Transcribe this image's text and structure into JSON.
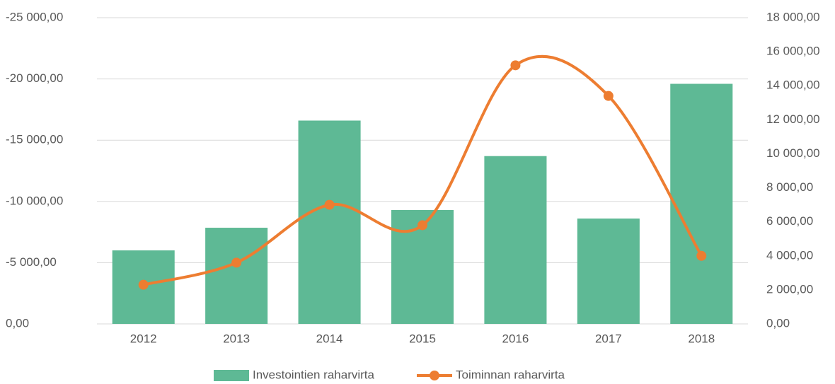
{
  "chart_data": {
    "type": "bar_line",
    "categories": [
      "2012",
      "2013",
      "2014",
      "2015",
      "2016",
      "2017",
      "2018"
    ],
    "series": [
      {
        "name": "Investointien raharvirta",
        "type": "bar",
        "color": "#5eb995",
        "axis": "y",
        "values": [
          -6000,
          -7850,
          -16600,
          -9300,
          -13700,
          -8600,
          -19600
        ]
      },
      {
        "name": "Toiminnan raharvirta",
        "type": "line",
        "color": "#ed7d31",
        "axis": "y2",
        "smooth": true,
        "values": [
          2300,
          3600,
          7000,
          5800,
          15200,
          13400,
          4000
        ]
      }
    ],
    "ylim": [
      0,
      -25000
    ],
    "yticks": [
      {
        "value": 0,
        "label": "0,00"
      },
      {
        "value": -5000,
        "label": "-5 000,00"
      },
      {
        "value": -10000,
        "label": "-10 000,00"
      },
      {
        "value": -15000,
        "label": "-15 000,00"
      },
      {
        "value": -20000,
        "label": "-20 000,00"
      },
      {
        "value": -25000,
        "label": "-25 000,00"
      }
    ],
    "y2lim": [
      0,
      18000
    ],
    "y2ticks": [
      {
        "value": 0,
        "label": "0,00"
      },
      {
        "value": 2000,
        "label": "2 000,00"
      },
      {
        "value": 4000,
        "label": "4 000,00"
      },
      {
        "value": 6000,
        "label": "6 000,00"
      },
      {
        "value": 8000,
        "label": "8 000,00"
      },
      {
        "value": 10000,
        "label": "10 000,00"
      },
      {
        "value": 12000,
        "label": "12 000,00"
      },
      {
        "value": 14000,
        "label": "14 000,00"
      },
      {
        "value": 16000,
        "label": "16 000,00"
      },
      {
        "value": 18000,
        "label": "18 000,00"
      }
    ],
    "grid": true,
    "legend": "bottom"
  }
}
